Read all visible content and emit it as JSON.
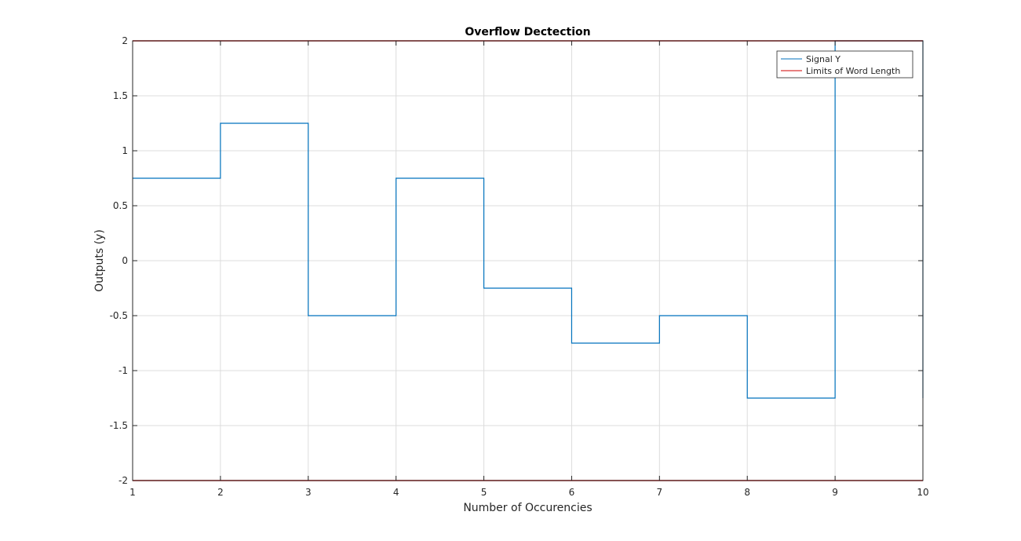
{
  "chart_data": {
    "type": "line",
    "title": "Overflow Dectection",
    "xlabel": "Number of Occurencies",
    "ylabel": "Outputs (y)",
    "xlim": [
      1,
      10
    ],
    "ylim": [
      -2,
      2
    ],
    "xticks": [
      1,
      2,
      3,
      4,
      5,
      6,
      7,
      8,
      9,
      10
    ],
    "yticks": [
      -2,
      -1.5,
      -1,
      -0.5,
      0,
      0.5,
      1,
      1.5,
      2
    ],
    "grid": true,
    "legend_position": "top-right",
    "series": [
      {
        "name": "Signal Y",
        "style": "stairs",
        "color": "#0072bd",
        "x": [
          1,
          2,
          3,
          4,
          5,
          6,
          7,
          8,
          9,
          10
        ],
        "y": [
          0.75,
          1.25,
          -0.5,
          0.75,
          -0.25,
          -0.75,
          -0.5,
          -1.25,
          2,
          -1.25
        ]
      },
      {
        "name": "Limits of Word Length",
        "style": "hlines",
        "color": "#d00000",
        "y": [
          2,
          -2
        ]
      }
    ]
  }
}
